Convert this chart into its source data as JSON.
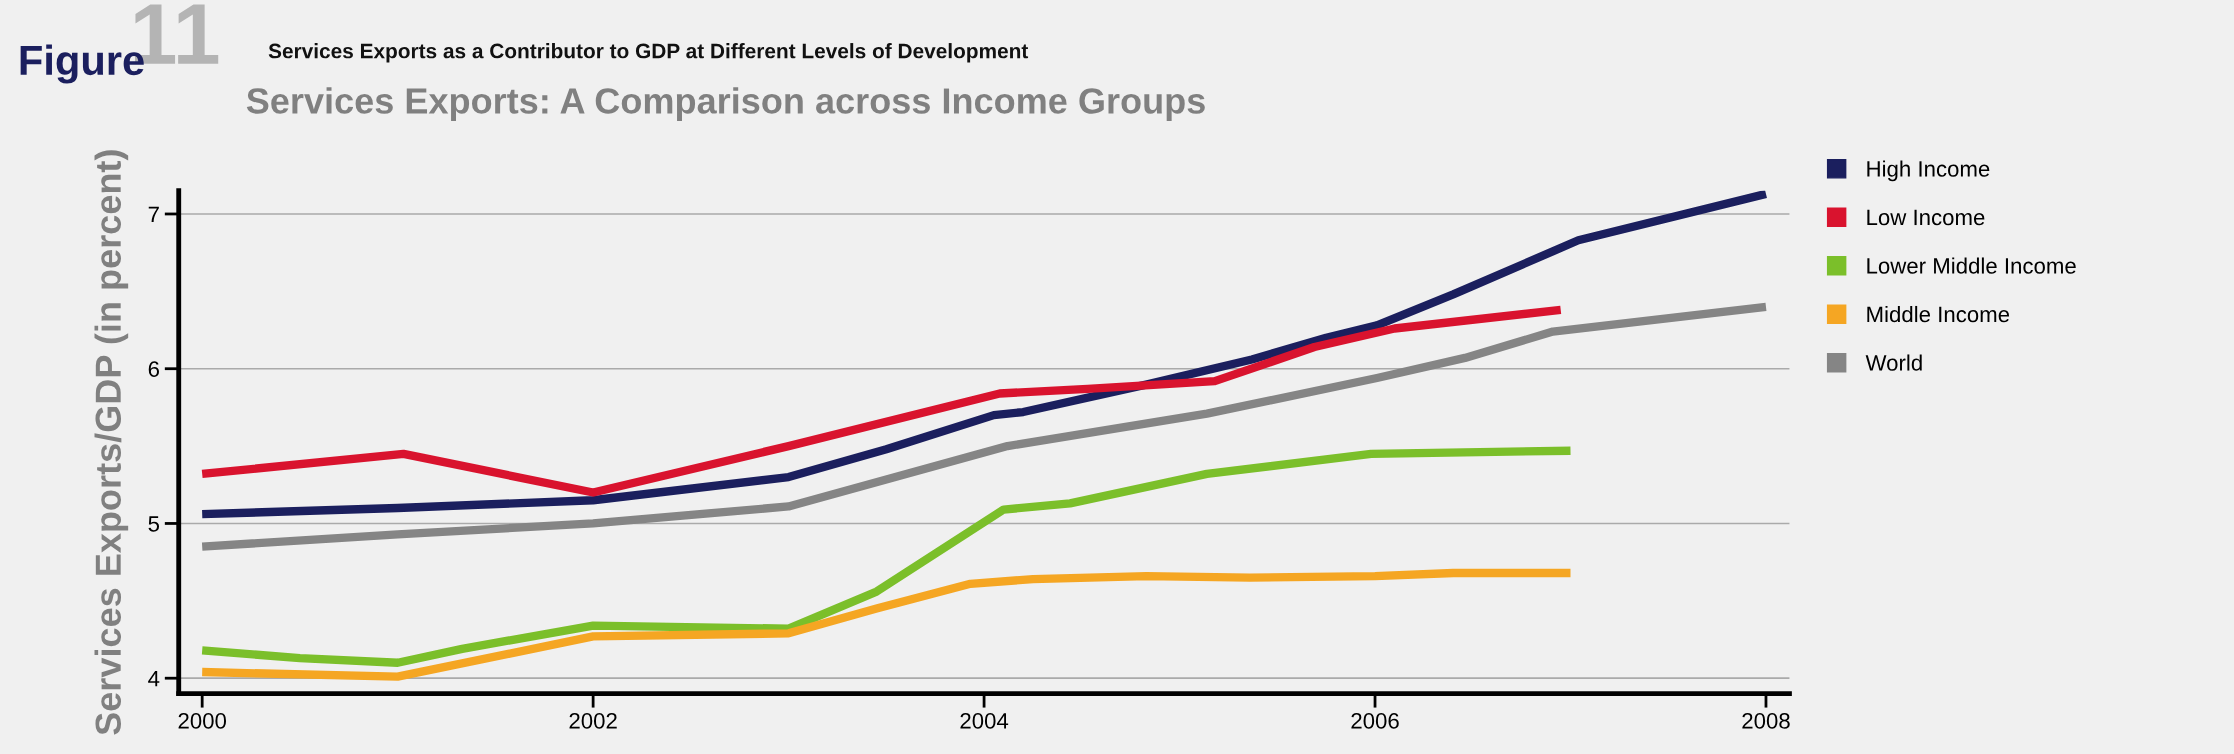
{
  "chart_data": {
    "type": "line",
    "title": "Services Exports as a Contributor to GDP at Different Levels of Development",
    "subtitle": "Services Exports: A Comparison across Income Groups",
    "annotations": [
      "Figure",
      "11"
    ],
    "ylabel": "Services Exports/GDP (in percent)",
    "xlim": [
      1999.88,
      2008.12
    ],
    "xticks": [
      2000,
      2002,
      2004,
      2006,
      2008
    ],
    "ylim": [
      3.9,
      7.15
    ],
    "yticks": [
      4,
      5,
      6,
      7
    ],
    "grid": "y",
    "legend": "top right",
    "marker": "none",
    "line_style": "solid",
    "series": [
      {
        "name": "High Income",
        "color": "#1b1f5e",
        "x": [
          2000,
          2001,
          2002,
          2003,
          2003.5,
          2004.05,
          2004.2,
          2004.84,
          2005.37,
          2005.75,
          2006.01,
          2006.4,
          2007.04,
          2008
        ],
        "values": [
          5.06,
          5.1,
          5.15,
          5.3,
          5.48,
          5.7,
          5.72,
          5.9,
          6.06,
          6.2,
          6.28,
          6.48,
          6.83,
          7.13
        ]
      },
      {
        "name": "Low Income",
        "color": "#d9132e",
        "x": [
          2000,
          2001.03,
          2002,
          2003,
          2004.08,
          2004.53,
          2005.18,
          2005.69,
          2006.1,
          2006.95
        ],
        "values": [
          5.32,
          5.45,
          5.2,
          5.5,
          5.84,
          5.87,
          5.92,
          6.14,
          6.26,
          6.38
        ]
      },
      {
        "name": "Lower Middle Income",
        "color": "#7bbf2a",
        "x": [
          2000,
          2000.5,
          2001,
          2001.33,
          2002,
          2003,
          2003.45,
          2004.1,
          2004.44,
          2005.14,
          2005.98,
          2007
        ],
        "values": [
          4.18,
          4.13,
          4.1,
          4.19,
          4.34,
          4.32,
          4.56,
          5.09,
          5.13,
          5.32,
          5.45,
          5.47
        ]
      },
      {
        "name": "Middle Income",
        "color": "#f5a623",
        "x": [
          2000,
          2001,
          2002,
          2003,
          2003.45,
          2003.93,
          2004.25,
          2004.83,
          2005.36,
          2006,
          2006.4,
          2007
        ],
        "values": [
          4.04,
          4.01,
          4.27,
          4.29,
          4.45,
          4.61,
          4.64,
          4.66,
          4.65,
          4.66,
          4.68,
          4.68
        ]
      },
      {
        "name": "World",
        "color": "#858585",
        "x": [
          2000,
          2001,
          2002,
          2003,
          2004.12,
          2005.14,
          2006.01,
          2006.46,
          2006.91,
          2008
        ],
        "values": [
          4.85,
          4.93,
          5.0,
          5.11,
          5.5,
          5.71,
          5.94,
          6.07,
          6.24,
          6.4
        ]
      }
    ]
  }
}
